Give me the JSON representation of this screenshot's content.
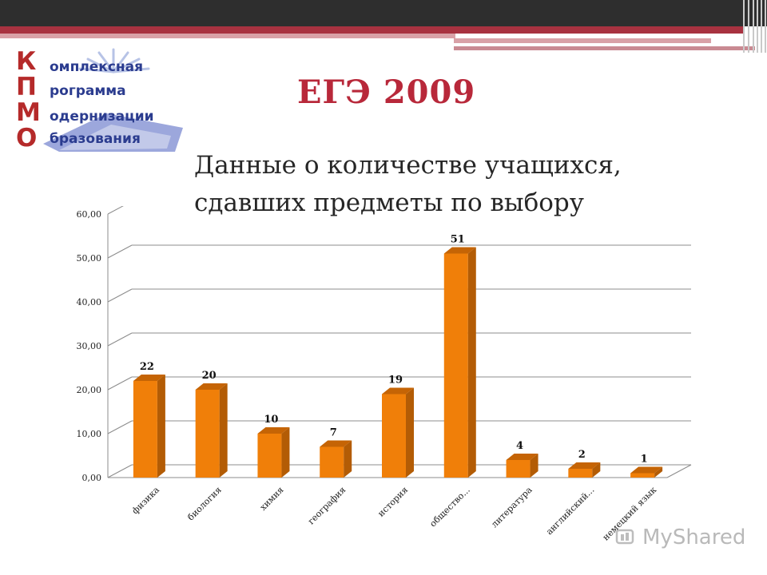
{
  "slide": {
    "title": "ЕГЭ 2009",
    "subtitle": "Данные о количестве учащихся, сдавших предметы по выбору",
    "watermark": "MyShared"
  },
  "logo": {
    "letters": [
      "К",
      "П",
      "М",
      "О"
    ],
    "words": [
      "омплексная",
      "рограмма",
      "одернизации",
      "бразования"
    ],
    "letter_color": "#b52a2a",
    "word_color": "#2b3c8f"
  },
  "chart_data": {
    "type": "bar",
    "title": "",
    "xlabel": "",
    "ylabel": "",
    "categories": [
      "физика",
      "биология",
      "химия",
      "география",
      "история",
      "общество...",
      "литература",
      "английский...",
      "немецкий язык"
    ],
    "values": [
      22,
      20,
      10,
      7,
      19,
      51,
      4,
      2,
      1
    ],
    "data_labels": [
      "22",
      "20",
      "10",
      "7",
      "19",
      "51",
      "4",
      "2",
      "1"
    ],
    "ylim": [
      0,
      60
    ],
    "yticks": [
      "0,00",
      "10,00",
      "20,00",
      "30,00",
      "40,00",
      "50,00",
      "60,00"
    ],
    "grid": true,
    "legend": "none",
    "bar_color": "#f07f09",
    "bar_side_color": "#b35c05",
    "bar_top_color": "#c56405"
  }
}
